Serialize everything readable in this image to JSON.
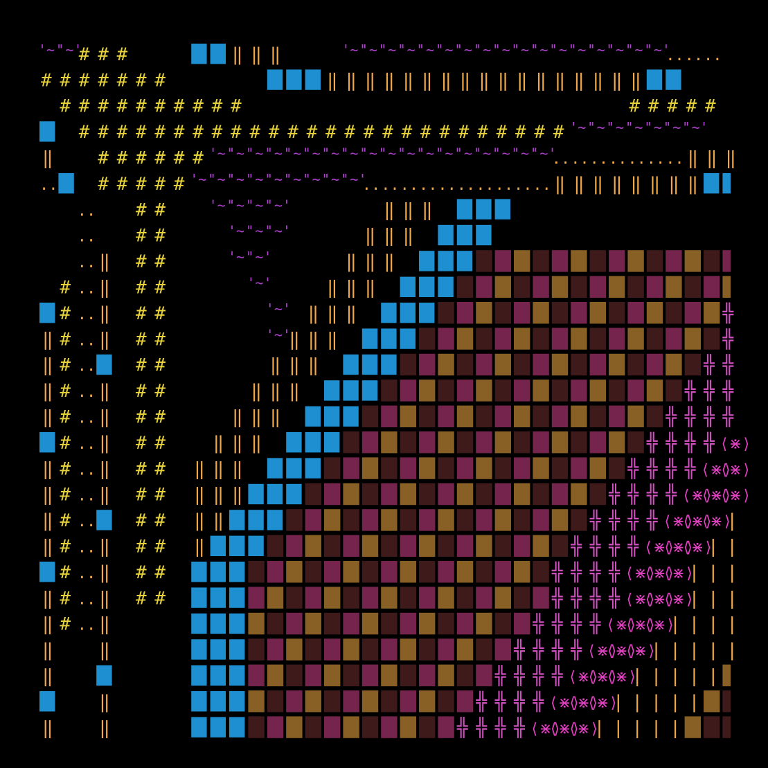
{
  "scene": {
    "description_free": true,
    "background_color": "#000000",
    "palette": {
      "hash": "#e8d23a",
      "pipe": "#f0a84a",
      "dots": "#f0a84a",
      "tilde": "#b040d0",
      "block": "#1e8fd0",
      "cross": "#d050c0",
      "star": "#e040c0",
      "shade_dark": "#4a1e1e",
      "shade_orange": "#a0702a",
      "shade_pink": "#8a2a5a"
    },
    "glyphs": {
      "hash": "#",
      "pipe": "‖",
      "dots": "..",
      "tilde": "'~'",
      "cross": "╬",
      "star": "⟨⋇⟩",
      "bar": "|"
    }
  }
}
